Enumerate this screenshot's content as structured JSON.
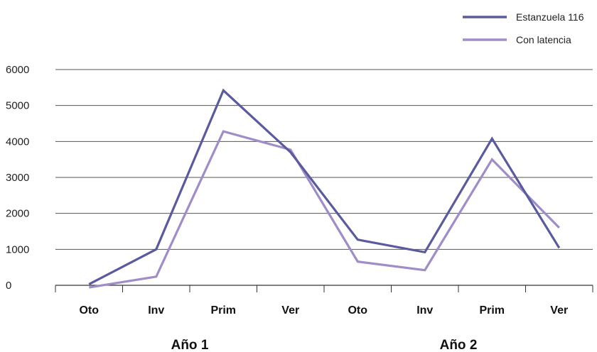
{
  "chart_data": {
    "type": "line",
    "categories": [
      "Oto",
      "Inv",
      "Prim",
      "Ver",
      "Oto",
      "Inv",
      "Prim",
      "Ver"
    ],
    "groups": [
      {
        "label": "Año 1",
        "span": [
          0,
          3
        ]
      },
      {
        "label": "Año 2",
        "span": [
          4,
          7
        ]
      }
    ],
    "series": [
      {
        "name": "Estanzuela 116",
        "color": "#5a5a9e",
        "values": [
          30,
          1000,
          5420,
          3700,
          1270,
          920,
          4080,
          1040
        ]
      },
      {
        "name": "Con latencia",
        "color": "#a08cc8",
        "values": [
          -60,
          240,
          4280,
          3770,
          660,
          420,
          3500,
          1600
        ]
      }
    ],
    "yticks": [
      0,
      1000,
      2000,
      3000,
      4000,
      5000,
      6000
    ],
    "ylim": [
      0,
      6000
    ],
    "grid": true,
    "legend_position": "top-right"
  }
}
